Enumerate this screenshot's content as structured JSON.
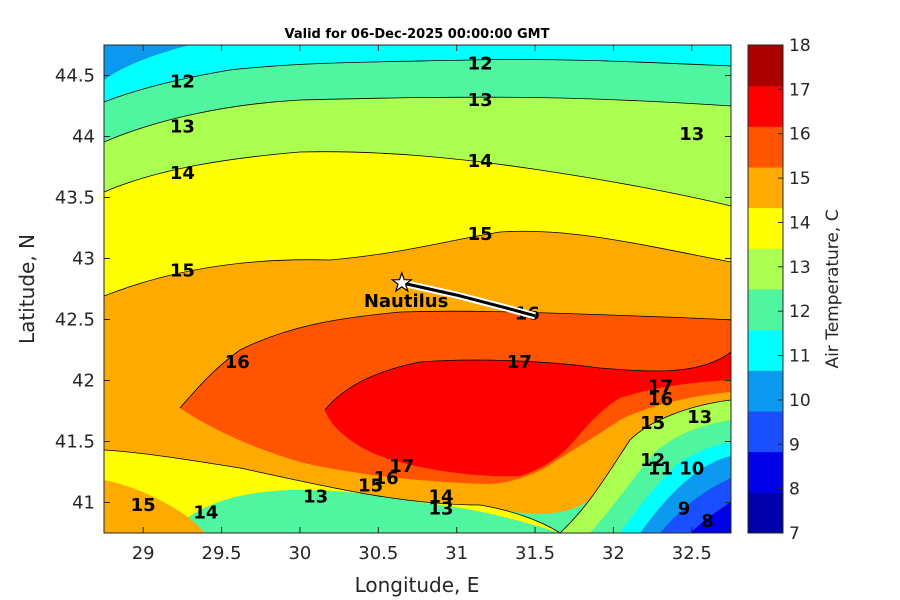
{
  "chart_data": {
    "type": "contour",
    "title": "Valid for 06-Dec-2025 00:00:00 GMT",
    "xlabel": "Longitude, E",
    "ylabel": "Latitude, N",
    "xlim": [
      28.75,
      32.75
    ],
    "ylim": [
      40.75,
      44.75
    ],
    "xticks": [
      "29",
      "29.5",
      "30",
      "30.5",
      "31",
      "31.5",
      "32",
      "32.5"
    ],
    "xtick_values": [
      29,
      29.5,
      30,
      30.5,
      31,
      31.5,
      32,
      32.5
    ],
    "yticks": [
      "41",
      "41.5",
      "42",
      "42.5",
      "43",
      "43.5",
      "44",
      "44.5"
    ],
    "ytick_values": [
      41,
      41.5,
      42,
      42.5,
      43,
      43.5,
      44,
      44.5
    ],
    "colorbar": {
      "label": "Air Temperature, C",
      "min": 7,
      "max": 18,
      "ticks": [
        "7",
        "8",
        "9",
        "10",
        "11",
        "12",
        "13",
        "14",
        "15",
        "16",
        "17",
        "18"
      ],
      "colors": [
        "#0000aa",
        "#0000e8",
        "#1a4fff",
        "#0a99ee",
        "#00ffff",
        "#50f5a0",
        "#aaff50",
        "#ffff00",
        "#ffaa00",
        "#ff5500",
        "#ff0000",
        "#aa0000"
      ]
    },
    "contour_labels": [
      {
        "text": "12",
        "lon": 29.25,
        "lat": 44.45
      },
      {
        "text": "12",
        "lon": 31.15,
        "lat": 44.6
      },
      {
        "text": "13",
        "lon": 29.25,
        "lat": 44.08
      },
      {
        "text": "13",
        "lon": 31.15,
        "lat": 44.3
      },
      {
        "text": "13",
        "lon": 32.5,
        "lat": 44.02
      },
      {
        "text": "14",
        "lon": 29.25,
        "lat": 43.7
      },
      {
        "text": "14",
        "lon": 31.15,
        "lat": 43.8
      },
      {
        "text": "15",
        "lon": 29.25,
        "lat": 42.9
      },
      {
        "text": "15",
        "lon": 31.15,
        "lat": 43.2
      },
      {
        "text": "16",
        "lon": 29.6,
        "lat": 42.15
      },
      {
        "text": "16",
        "lon": 31.45,
        "lat": 42.55
      },
      {
        "text": "17",
        "lon": 31.4,
        "lat": 42.15
      },
      {
        "text": "17",
        "lon": 32.3,
        "lat": 41.95
      },
      {
        "text": "16",
        "lon": 32.3,
        "lat": 41.85
      },
      {
        "text": "15",
        "lon": 32.25,
        "lat": 41.65
      },
      {
        "text": "13",
        "lon": 32.55,
        "lat": 41.7
      },
      {
        "text": "17",
        "lon": 30.65,
        "lat": 41.3
      },
      {
        "text": "16",
        "lon": 30.55,
        "lat": 41.2
      },
      {
        "text": "15",
        "lon": 30.45,
        "lat": 41.14
      },
      {
        "text": "12",
        "lon": 32.25,
        "lat": 41.35
      },
      {
        "text": "11",
        "lon": 32.3,
        "lat": 41.28
      },
      {
        "text": "10",
        "lon": 32.5,
        "lat": 41.28
      },
      {
        "text": "13",
        "lon": 30.1,
        "lat": 41.05
      },
      {
        "text": "14",
        "lon": 30.9,
        "lat": 41.05
      },
      {
        "text": "13",
        "lon": 30.9,
        "lat": 40.95
      },
      {
        "text": "15",
        "lon": 29.0,
        "lat": 40.98
      },
      {
        "text": "14",
        "lon": 29.4,
        "lat": 40.92
      },
      {
        "text": "9",
        "lon": 32.45,
        "lat": 40.95
      },
      {
        "text": "8",
        "lon": 32.6,
        "lat": 40.85
      }
    ],
    "station": {
      "name": "Nautilus",
      "lon": 30.65,
      "lat": 42.8
    },
    "track": [
      [
        30.65,
        42.8
      ],
      [
        31.0,
        42.7
      ],
      [
        31.3,
        42.6
      ],
      [
        31.5,
        42.53
      ]
    ]
  }
}
